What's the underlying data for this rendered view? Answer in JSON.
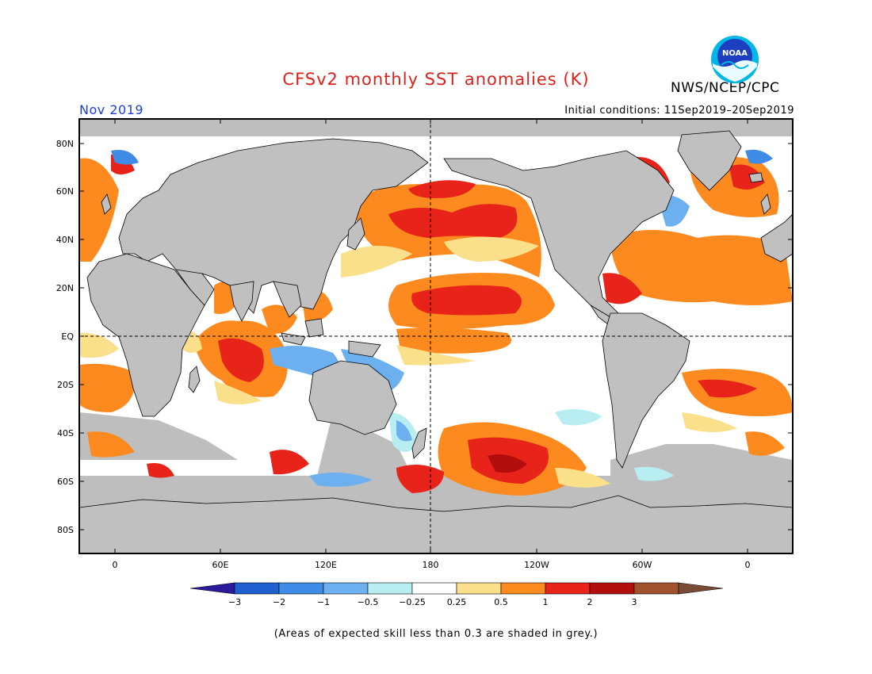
{
  "title": "CFSv2 monthly SST anomalies (K)",
  "agency": "NWS/NCEP/CPC",
  "month": "Nov 2019",
  "initial_conditions": "Initial conditions: 11Sep2019–20Sep2019",
  "footnote": "(Areas of expected skill less than 0.3 are shaded in grey.)",
  "logo_text": "NOAA",
  "lat_labels": [
    "80N",
    "60N",
    "40N",
    "20N",
    "EQ",
    "20S",
    "40S",
    "60S",
    "80S"
  ],
  "lon_labels": [
    "0",
    "60E",
    "120E",
    "180",
    "120W",
    "60W",
    "0"
  ],
  "colorbar": {
    "ticks": [
      "−3",
      "−2",
      "−1",
      "−0.5",
      "−0.25",
      "0.25",
      "0.5",
      "1",
      "2",
      "3"
    ],
    "colors": [
      "#2b1a9e",
      "#1f5fd0",
      "#3f8be8",
      "#6cb0f0",
      "#b8eef2",
      "#ffffff",
      "#fbe08b",
      "#fd8a1e",
      "#e8231a",
      "#b30e0e",
      "#a0522d",
      "#7a4b35"
    ]
  },
  "map_colors": {
    "land": "#c0c0c0",
    "skill_grey": "#bebebe",
    "ocean_neutral": "#ffffff"
  }
}
